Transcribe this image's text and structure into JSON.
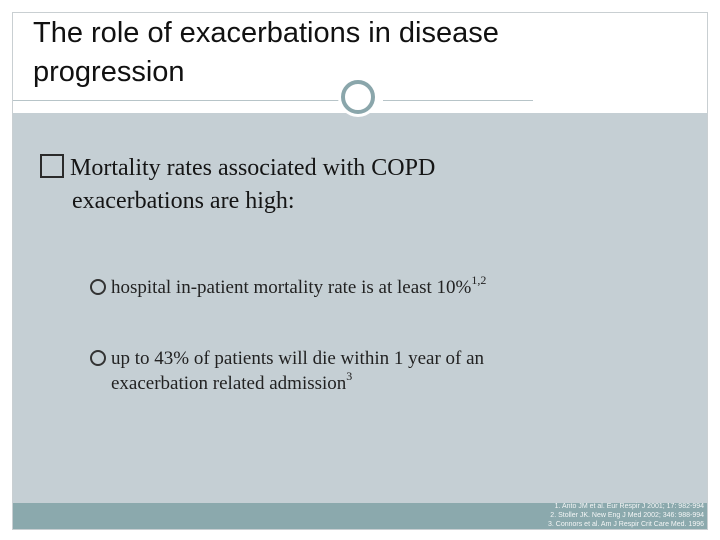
{
  "slide": {
    "title_line1": "The role of exacerbations in disease",
    "title_line2": "progression",
    "main_bullet_line1": "Mortality rates associated with COPD",
    "main_bullet_line2": "exacerbations are high:",
    "sub_bullets": [
      {
        "text": "hospital in-patient mortality rate is at least 10%",
        "sup": "1,2"
      },
      {
        "text_line1": "up to 43% of patients will die within 1 year of an",
        "text_line2": "exacerbation related admission",
        "sup": "3"
      }
    ],
    "references": [
      "1. Anto JM et al. Eur Respir J 2001; 17: 982-994",
      "2. Stoller JK. New Eng J Med 2002; 346: 988-994",
      "3. Connors et al. Am J Respir Crit Care Med. 1996"
    ]
  },
  "colors": {
    "content_bg": "#c5cfd4",
    "footer_bar": "#8ba9ad",
    "accent_ring": "#8aa6ab"
  },
  "icons": {
    "main_bullet": "square-box-icon",
    "sub_bullet": "ring-bullet-icon",
    "title_decoration": "circle-icon"
  }
}
